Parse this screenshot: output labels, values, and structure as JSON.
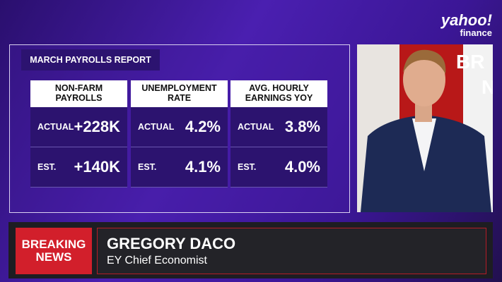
{
  "logo": {
    "brand": "yahoo!",
    "product": "finance"
  },
  "panel": {
    "title": "MARCH PAYROLLS REPORT",
    "cards": [
      {
        "header": "NON-FARM PAYROLLS",
        "actual_label": "ACTUAL",
        "actual": "+228K",
        "est_label": "EST.",
        "est": "+140K"
      },
      {
        "header": "UNEMPLOYMENT RATE",
        "actual_label": "ACTUAL",
        "actual": "4.2%",
        "est_label": "EST.",
        "est": "4.1%"
      },
      {
        "header": "AVG. HOURLY EARNINGS YOY",
        "actual_label": "ACTUAL",
        "actual": "3.8%",
        "est_label": "EST.",
        "est": "4.0%"
      }
    ]
  },
  "video": {
    "backdrop_text": [
      "BR",
      "N"
    ]
  },
  "lower_third": {
    "badge": "BREAKING NEWS",
    "name": "GREGORY DACO",
    "role": "EY Chief Economist"
  }
}
